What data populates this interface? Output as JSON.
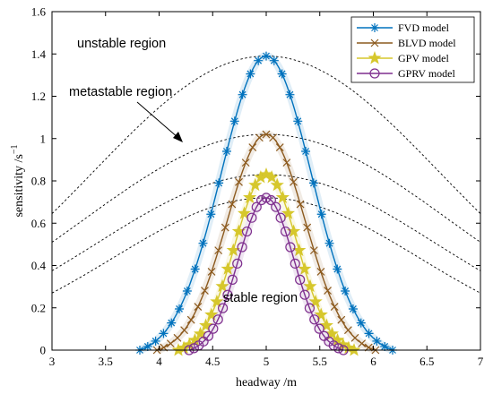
{
  "chart_data": {
    "type": "line",
    "xlabel": "headway /m",
    "ylabel": "sensitivity /s",
    "ylabel_superscript": "−1",
    "xlim": [
      3,
      7
    ],
    "ylim": [
      0,
      1.6
    ],
    "xticks": [
      3,
      3.5,
      4,
      4.5,
      5,
      5.5,
      6,
      6.5,
      7
    ],
    "yticks": [
      0,
      0.2,
      0.4,
      0.6,
      0.8,
      1,
      1.2,
      1.4,
      1.6
    ],
    "xtick_labels": [
      "3",
      "3.5",
      "4",
      "4.5",
      "5",
      "5.5",
      "6",
      "6.5",
      "7"
    ],
    "ytick_labels": [
      "0",
      "0.2",
      "0.4",
      "0.6",
      "0.8",
      "1",
      "1.2",
      "1.4",
      "1.6"
    ],
    "grid": false,
    "legend_position": "top-right",
    "series": [
      {
        "name": "FVD model",
        "color": "#0072BD",
        "marker": "asterisk",
        "peak": 1.39,
        "x_min": 3.82,
        "x_max": 6.18
      },
      {
        "name": "BLVD model",
        "color": "#8C5A1E",
        "marker": "cross",
        "peak": 1.02,
        "x_min": 3.98,
        "x_max": 6.02
      },
      {
        "name": "GPV model",
        "color": "#D6C72C",
        "marker": "star",
        "peak": 0.83,
        "x_min": 4.18,
        "x_max": 5.82
      },
      {
        "name": "GPRV model",
        "color": "#7E2F8E",
        "marker": "circle",
        "peak": 0.72,
        "x_min": 4.28,
        "x_max": 5.72
      }
    ],
    "dashed_curves": [
      {
        "peak": 1.39,
        "value_at_3": 0.645
      },
      {
        "peak": 1.02,
        "value_at_3": 0.51
      },
      {
        "peak": 0.83,
        "value_at_3": 0.375
      },
      {
        "peak": 0.72,
        "value_at_3": 0.27
      }
    ],
    "annotations": {
      "unstable": "unstable region",
      "metastable": "metastable region",
      "stable": "stable region"
    }
  }
}
